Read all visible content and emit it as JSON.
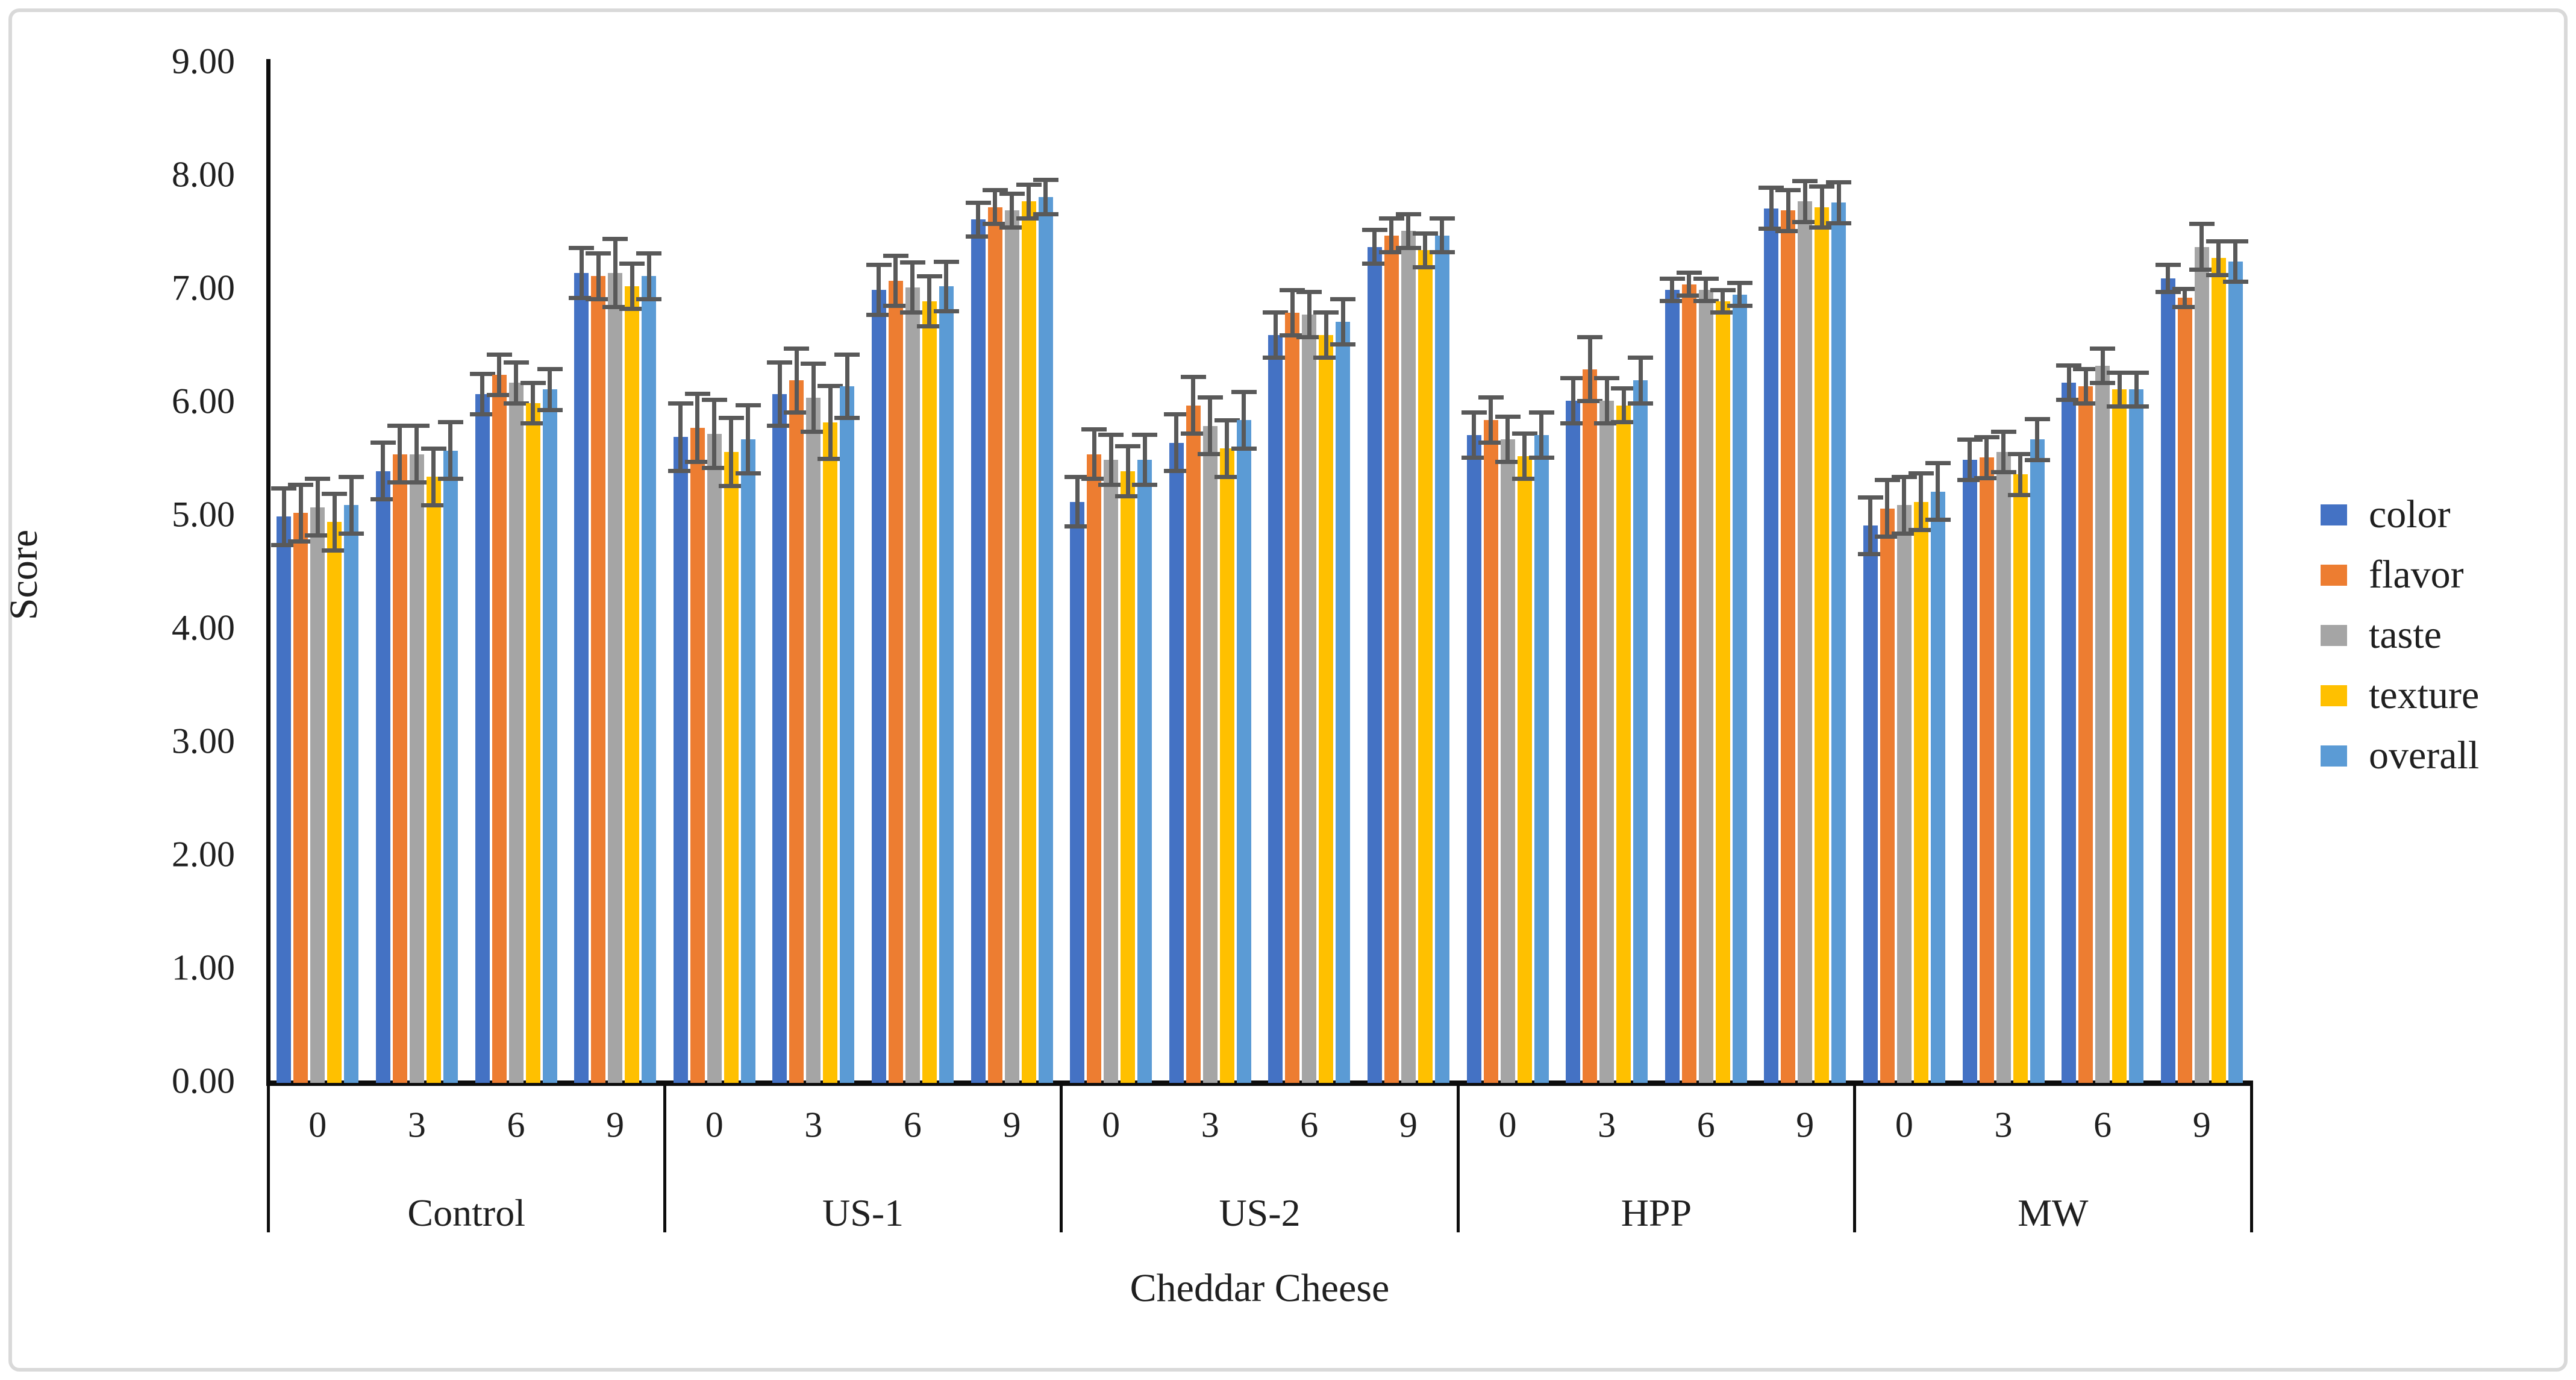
{
  "chart_data": {
    "type": "bar",
    "title": "",
    "xlabel": "Cheddar Cheese",
    "ylabel": "Score",
    "ylim": [
      0,
      9
    ],
    "y_ticks": [
      "0.00",
      "1.00",
      "2.00",
      "3.00",
      "4.00",
      "5.00",
      "6.00",
      "7.00",
      "8.00",
      "9.00"
    ],
    "grid": false,
    "legend_position": "right",
    "error_bars": true,
    "error_bar_color": "#595959",
    "groups": [
      "Control",
      "US-1",
      "US-2",
      "HPP",
      "MW"
    ],
    "storage_times": [
      "0",
      "3",
      "6",
      "9"
    ],
    "series": [
      {
        "name": "color",
        "color": "#4472C4",
        "values_by_group": [
          [
            5.0,
            5.4,
            6.08,
            7.15
          ],
          [
            5.7,
            6.08,
            7.0,
            7.62
          ],
          [
            5.13,
            5.65,
            6.6,
            7.38
          ],
          [
            5.72,
            6.02,
            7.0,
            7.72
          ],
          [
            4.92,
            5.5,
            6.18,
            7.1
          ]
        ],
        "errors_by_group": [
          [
            0.25,
            0.25,
            0.18,
            0.22
          ],
          [
            0.3,
            0.28,
            0.22,
            0.15
          ],
          [
            0.22,
            0.25,
            0.2,
            0.15
          ],
          [
            0.2,
            0.2,
            0.1,
            0.18
          ],
          [
            0.25,
            0.18,
            0.15,
            0.12
          ]
        ]
      },
      {
        "name": "flavor",
        "color": "#ED7D31",
        "values_by_group": [
          [
            5.03,
            5.55,
            6.25,
            7.12
          ],
          [
            5.78,
            6.2,
            7.08,
            7.73
          ],
          [
            5.55,
            5.98,
            6.8,
            7.48
          ],
          [
            5.85,
            6.3,
            7.05,
            7.7
          ],
          [
            5.07,
            5.52,
            6.15,
            6.93
          ]
        ],
        "errors_by_group": [
          [
            0.25,
            0.25,
            0.18,
            0.2
          ],
          [
            0.3,
            0.28,
            0.22,
            0.15
          ],
          [
            0.22,
            0.25,
            0.2,
            0.15
          ],
          [
            0.2,
            0.28,
            0.1,
            0.18
          ],
          [
            0.25,
            0.18,
            0.15,
            0.08
          ]
        ]
      },
      {
        "name": "taste",
        "color": "#A5A5A5",
        "values_by_group": [
          [
            5.08,
            5.55,
            6.18,
            7.15
          ],
          [
            5.73,
            6.05,
            7.02,
            7.7
          ],
          [
            5.5,
            5.8,
            6.78,
            7.52
          ],
          [
            5.68,
            6.02,
            7.0,
            7.78
          ],
          [
            5.1,
            5.57,
            6.33,
            7.38
          ]
        ],
        "errors_by_group": [
          [
            0.25,
            0.25,
            0.18,
            0.3
          ],
          [
            0.3,
            0.3,
            0.22,
            0.15
          ],
          [
            0.22,
            0.25,
            0.2,
            0.15
          ],
          [
            0.2,
            0.2,
            0.1,
            0.18
          ],
          [
            0.25,
            0.18,
            0.15,
            0.2
          ]
        ]
      },
      {
        "name": "texture",
        "color": "#FFC000",
        "values_by_group": [
          [
            4.95,
            5.35,
            6.0,
            7.03
          ],
          [
            5.57,
            5.83,
            6.9,
            7.78
          ],
          [
            5.4,
            5.6,
            6.6,
            7.35
          ],
          [
            5.53,
            5.98,
            6.9,
            7.73
          ],
          [
            5.13,
            5.37,
            6.12,
            7.28
          ]
        ],
        "errors_by_group": [
          [
            0.25,
            0.25,
            0.18,
            0.2
          ],
          [
            0.3,
            0.32,
            0.22,
            0.15
          ],
          [
            0.22,
            0.25,
            0.2,
            0.15
          ],
          [
            0.2,
            0.15,
            0.1,
            0.18
          ],
          [
            0.25,
            0.18,
            0.15,
            0.15
          ]
        ]
      },
      {
        "name": "overall",
        "color": "#5B9BD5",
        "values_by_group": [
          [
            5.1,
            5.58,
            6.12,
            7.12
          ],
          [
            5.68,
            6.15,
            7.03,
            7.82
          ],
          [
            5.5,
            5.85,
            6.72,
            7.48
          ],
          [
            5.72,
            6.2,
            6.96,
            7.77
          ],
          [
            5.22,
            5.68,
            6.12,
            7.25
          ]
        ],
        "errors_by_group": [
          [
            0.25,
            0.25,
            0.18,
            0.2
          ],
          [
            0.3,
            0.28,
            0.22,
            0.15
          ],
          [
            0.22,
            0.25,
            0.2,
            0.15
          ],
          [
            0.2,
            0.2,
            0.1,
            0.18
          ],
          [
            0.25,
            0.18,
            0.15,
            0.18
          ]
        ]
      }
    ]
  }
}
